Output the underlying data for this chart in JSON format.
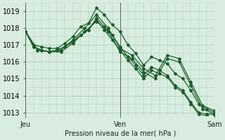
{
  "title": "",
  "xlabel": "Pression niveau de la mer( hPa )",
  "ylabel": "",
  "bg_color": "#d8ede0",
  "grid_color": "#a8c8b0",
  "line_color": "#1a5c2a",
  "ylim": [
    1012.8,
    1019.5
  ],
  "xlim": [
    0,
    48
  ],
  "day_ticks": [
    0,
    24,
    48
  ],
  "day_labels": [
    "Jeu",
    "Ven",
    "Sam"
  ],
  "series": [
    {
      "x": [
        0,
        2,
        4,
        6,
        8,
        10,
        12,
        14,
        16,
        18,
        20,
        22,
        24,
        26,
        28,
        30,
        32,
        34,
        36,
        38,
        40,
        42,
        44,
        46,
        48
      ],
      "y": [
        1017.8,
        1017.0,
        1016.9,
        1016.8,
        1016.8,
        1017.1,
        1017.5,
        1018.1,
        1018.3,
        1019.2,
        1018.8,
        1018.2,
        1017.8,
        1017.0,
        1016.5,
        1015.8,
        1016.3,
        1016.1,
        1015.9,
        1015.3,
        1015.0,
        1014.3,
        1013.5,
        1013.2,
        1013.0
      ]
    },
    {
      "x": [
        0,
        2,
        4,
        6,
        8,
        10,
        12,
        14,
        16,
        18,
        20,
        22,
        24,
        26,
        28,
        30,
        32,
        34,
        36,
        38,
        40,
        42,
        44,
        46,
        48
      ],
      "y": [
        1017.8,
        1016.9,
        1016.7,
        1016.6,
        1016.7,
        1016.9,
        1017.2,
        1017.6,
        1017.9,
        1018.6,
        1018.1,
        1017.6,
        1016.9,
        1016.3,
        1015.8,
        1015.2,
        1015.7,
        1015.5,
        1015.2,
        1014.6,
        1014.3,
        1013.6,
        1013.0,
        1012.9,
        1012.9
      ]
    },
    {
      "x": [
        0,
        2,
        4,
        6,
        8,
        10,
        12,
        14,
        16,
        18,
        20,
        22,
        24,
        26,
        28,
        30,
        32,
        34,
        36,
        38,
        40,
        42,
        44,
        46,
        48
      ],
      "y": [
        1017.8,
        1016.9,
        1016.7,
        1016.6,
        1016.7,
        1016.9,
        1017.2,
        1017.6,
        1017.9,
        1018.5,
        1017.9,
        1017.3,
        1016.7,
        1016.1,
        1015.6,
        1015.0,
        1015.5,
        1015.3,
        1015.1,
        1014.5,
        1014.2,
        1013.5,
        1012.9,
        1012.8,
        1012.8
      ]
    },
    {
      "x": [
        0,
        3,
        6,
        9,
        12,
        15,
        18,
        21,
        24,
        27,
        30,
        33,
        36,
        39,
        42,
        45,
        48
      ],
      "y": [
        1017.8,
        1016.7,
        1016.6,
        1016.7,
        1017.3,
        1018.0,
        1018.8,
        1018.0,
        1016.8,
        1016.4,
        1015.6,
        1015.2,
        1016.4,
        1016.2,
        1014.8,
        1013.4,
        1013.1
      ]
    },
    {
      "x": [
        0,
        3,
        6,
        9,
        12,
        15,
        18,
        21,
        24,
        27,
        30,
        33,
        36,
        39,
        42,
        45,
        48
      ],
      "y": [
        1017.8,
        1016.7,
        1016.6,
        1016.6,
        1017.1,
        1017.8,
        1018.4,
        1017.8,
        1016.6,
        1016.2,
        1015.4,
        1015.0,
        1016.2,
        1016.0,
        1014.6,
        1013.2,
        1012.9
      ]
    }
  ],
  "marker": "D",
  "marker_size": 2.0,
  "linewidth": 0.9
}
